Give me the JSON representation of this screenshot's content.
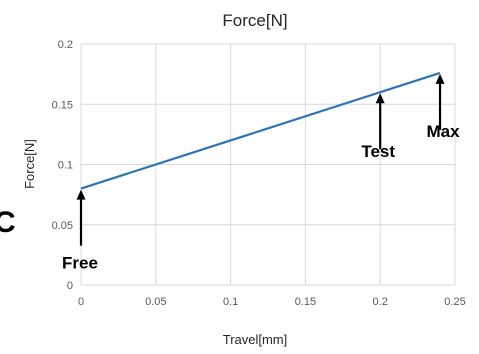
{
  "chart_data": {
    "type": "line",
    "title": "Force[N]",
    "xlabel": "Travel[mm]",
    "ylabel": "Force[N]",
    "xlim": [
      0,
      0.25
    ],
    "ylim": [
      0,
      0.2
    ],
    "xticks": [
      "0",
      "0.05",
      "0.1",
      "0.15",
      "0.2",
      "0.25"
    ],
    "yticks": [
      "0",
      "0.05",
      "0.1",
      "0.15",
      "0.2"
    ],
    "grid": true,
    "legend": "none",
    "series": [
      {
        "x": [
          0,
          0.24
        ],
        "y": [
          0.08,
          0.176
        ],
        "color": "#2e75b6"
      }
    ],
    "annotations": [
      {
        "label": "Free",
        "x": 0,
        "y": 0.08
      },
      {
        "label": "Test",
        "x": 0.2,
        "y": 0.16
      },
      {
        "label": "Max",
        "x": 0.24,
        "y": 0.176
      }
    ]
  },
  "side_letter": "C"
}
